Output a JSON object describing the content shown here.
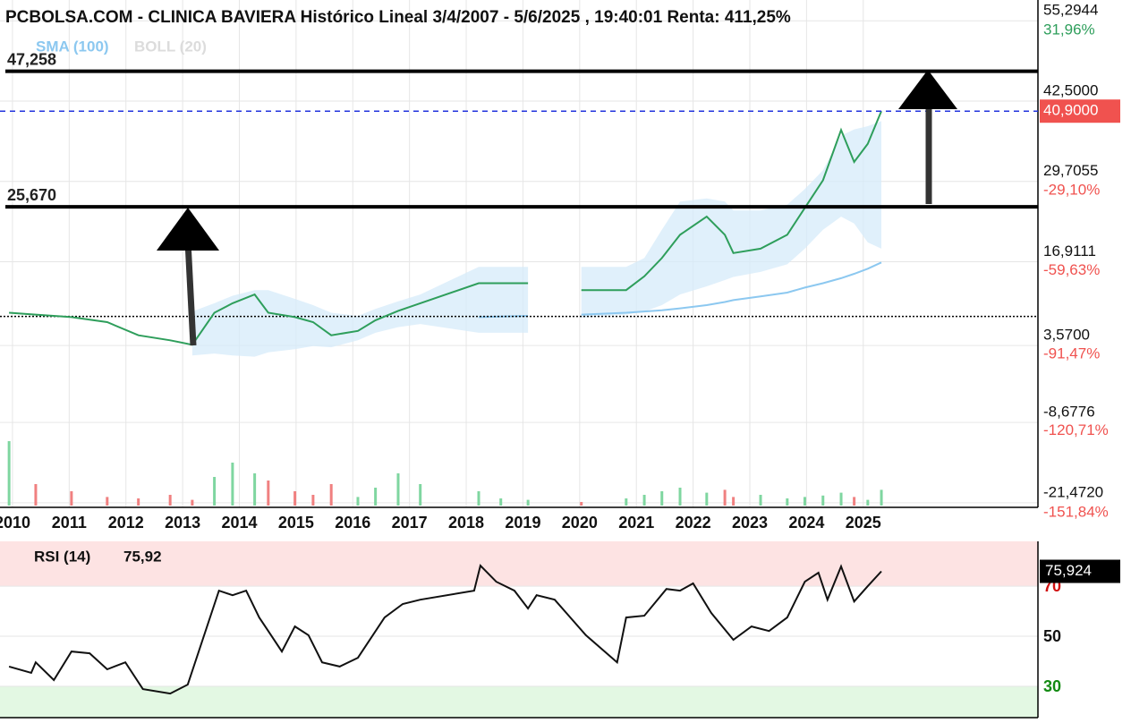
{
  "chart_data": [
    {
      "type": "line",
      "title": "PCBOLSA.COM - CLINICA BAVIERA Histórico Lineal 3/4/2007 - 5/6/2025 , 19:40:01 Renta: 411,25%",
      "x": [
        2009.94,
        2010.41,
        2011.04,
        2011.67,
        2012.22,
        2012.78,
        2013.17,
        2013.56,
        2013.88,
        2014.27,
        2014.51,
        2014.98,
        2015.3,
        2015.62,
        2016.09,
        2016.4,
        2016.8,
        2017.19,
        2018.22,
        2018.61,
        2019.09,
        2019.6,
        2020.03,
        2020.82,
        2021.14,
        2021.45,
        2021.77,
        2022.24,
        2022.56,
        2022.71,
        2023.19,
        2023.66,
        2023.97,
        2024.29,
        2024.61,
        2024.84,
        2025.08,
        2025.32
      ],
      "price": {
        "color": "#2e9e5b",
        "values": [
          8.8,
          8.5,
          8.1,
          7.3,
          5.2,
          4.4,
          3.7,
          8.8,
          10.3,
          11.7,
          8.8,
          8.1,
          7.3,
          5.2,
          5.9,
          7.6,
          9.1,
          10.3,
          13.5,
          13.5,
          13.5,
          null,
          12.4,
          12.4,
          14.6,
          17.5,
          21.2,
          24.1,
          21.2,
          18.3,
          19.0,
          21.2,
          25.5,
          29.9,
          37.9,
          32.8,
          35.7,
          40.9
        ]
      },
      "series": [
        {
          "name": "SMA (100)",
          "color": "#8cc8f0",
          "values": [
            null,
            null,
            null,
            null,
            null,
            null,
            null,
            null,
            null,
            null,
            null,
            null,
            null,
            null,
            null,
            null,
            null,
            null,
            8.1,
            8.2,
            8.3,
            null,
            8.5,
            8.8,
            9.0,
            9.2,
            9.5,
            10.0,
            10.5,
            10.8,
            11.4,
            12.0,
            12.8,
            13.5,
            14.3,
            15.0,
            15.8,
            16.8
          ]
        },
        {
          "name": "BOLL (20)",
          "color": "#d6ebf9",
          "upper": [
            null,
            null,
            null,
            null,
            null,
            null,
            9.0,
            10.3,
            11.5,
            12.4,
            12.4,
            11.0,
            10.0,
            8.8,
            8.3,
            9.4,
            10.6,
            11.7,
            16.1,
            16.1,
            16.1,
            null,
            16.1,
            16.1,
            17.5,
            22.0,
            26.5,
            27.0,
            26.5,
            25.1,
            25.1,
            26.0,
            28.5,
            31.5,
            37.0,
            38.0,
            38.5,
            39.3
          ],
          "lower": [
            null,
            null,
            null,
            null,
            null,
            null,
            2.0,
            2.3,
            2.0,
            1.8,
            2.5,
            3.0,
            3.5,
            3.3,
            4.4,
            5.6,
            6.5,
            7.0,
            5.6,
            5.6,
            5.6,
            null,
            8.0,
            8.5,
            9.0,
            10.0,
            11.7,
            13.0,
            14.0,
            14.5,
            15.3,
            16.5,
            19.0,
            22.0,
            24.1,
            23.0,
            20.0,
            19.0
          ]
        }
      ],
      "volume": {
        "up_color": "#7fd6a0",
        "down_color": "#f08080",
        "lim": [
          0,
          100
        ],
        "values": [
          90,
          30,
          20,
          12,
          10,
          15,
          8,
          40,
          60,
          45,
          35,
          20,
          15,
          30,
          12,
          25,
          45,
          30,
          20,
          10,
          8,
          null,
          5,
          10,
          15,
          20,
          25,
          18,
          22,
          12,
          15,
          10,
          12,
          14,
          18,
          12,
          8,
          22
        ]
      },
      "xlim": [
        2009.78,
        2028.08
      ],
      "xticks": [
        2010,
        2011,
        2012,
        2013,
        2014,
        2015,
        2016,
        2017,
        2018,
        2019,
        2020,
        2021,
        2022,
        2023,
        2024,
        2025
      ],
      "ylim": [
        -22.2,
        58.6
      ],
      "yticks": [
        {
          "value": 55.2944,
          "label": "55,2944"
        },
        {
          "value": 42.5,
          "label": "42,5000"
        },
        {
          "value": 29.7055,
          "label": "29,7055"
        },
        {
          "value": 16.9111,
          "label": "16,9111"
        },
        {
          "value": 3.57,
          "label": "3,5700"
        },
        {
          "value": -8.6776,
          "label": "-8,6776"
        },
        {
          "value": -21.472,
          "label": "-21,4720"
        }
      ],
      "y2lim": [
        -153.58,
        39.87
      ],
      "y2ticks": [
        {
          "value": 31.96,
          "label": "31,96%"
        },
        {
          "value": -29.1,
          "label": "-29,10%"
        },
        {
          "value": -59.63,
          "label": "-59,63%"
        },
        {
          "value": -91.47,
          "label": "-91,47%"
        },
        {
          "value": -120.71,
          "label": "-120,71%"
        },
        {
          "value": -151.84,
          "label": "-151,84%"
        }
      ],
      "levels": [
        {
          "value": 47.258,
          "label": "47,258"
        },
        {
          "value": 25.67,
          "label": "25,670"
        }
      ],
      "last_price": {
        "value": 40.9,
        "label": "40,9000",
        "color": "#f0524f"
      },
      "reference_line": 8.2,
      "grid": true
    },
    {
      "type": "line",
      "title": "RSI (14)",
      "value_text": "75,92",
      "x": [
        2009.94,
        2010.33,
        2010.41,
        2010.73,
        2011.04,
        2011.36,
        2011.67,
        2011.99,
        2012.3,
        2012.78,
        2013.09,
        2013.64,
        2013.88,
        2014.12,
        2014.35,
        2014.51,
        2014.75,
        2014.98,
        2015.22,
        2015.46,
        2015.77,
        2016.09,
        2016.56,
        2016.88,
        2017.19,
        2018.14,
        2018.25,
        2018.53,
        2018.85,
        2019.09,
        2019.24,
        2019.56,
        2020.11,
        2020.66,
        2020.82,
        2021.14,
        2021.53,
        2021.77,
        2022.0,
        2022.32,
        2022.71,
        2023.03,
        2023.34,
        2023.66,
        2023.97,
        2024.21,
        2024.37,
        2024.61,
        2024.84,
        2025.08,
        2025.32
      ],
      "values": [
        37.9,
        35.4,
        39.6,
        32.5,
        43.9,
        43.2,
        36.8,
        39.6,
        28.9,
        27.1,
        30.7,
        68.2,
        66.4,
        68.2,
        57.5,
        52.1,
        43.9,
        53.9,
        50.4,
        39.6,
        37.9,
        41.4,
        57.5,
        62.9,
        64.6,
        68.2,
        78.2,
        71.8,
        68.2,
        61.1,
        66.4,
        64.6,
        50.4,
        39.6,
        57.5,
        58.2,
        68.9,
        68.2,
        71.1,
        59.3,
        48.6,
        53.9,
        52.1,
        57.5,
        71.8,
        75.4,
        64.6,
        77.9,
        63.9,
        70.0,
        75.924
      ],
      "color": "#111111",
      "last_value": {
        "value": 75.924,
        "label": "75,924"
      },
      "xlim": [
        2009.78,
        2028.08
      ],
      "ylim": [
        17.5,
        87.9
      ],
      "yticks": [
        70,
        50,
        30
      ],
      "overbought": 70,
      "oversold": 30,
      "grid": true
    }
  ]
}
